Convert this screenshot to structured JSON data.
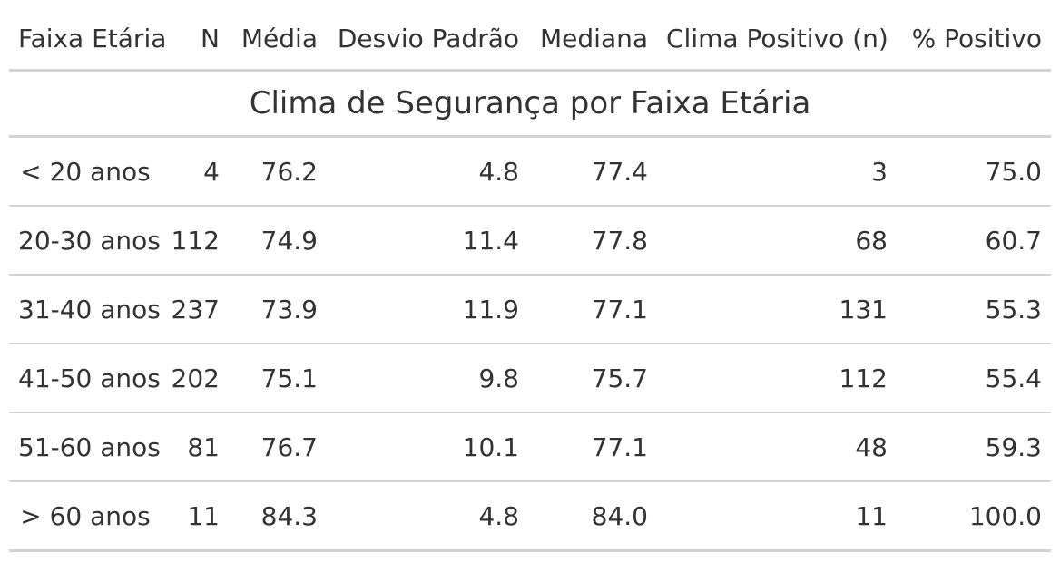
{
  "table": {
    "title": "Clima de Segurança por Faixa Etária",
    "columns": [
      "Faixa Etária",
      "N",
      "Média",
      "Desvio Padrão",
      "Mediana",
      "Clima Positivo (n)",
      "% Positivo"
    ],
    "rows": [
      [
        "< 20 anos",
        "4",
        "76.2",
        "4.8",
        "77.4",
        "3",
        "75.0"
      ],
      [
        "20-30 anos",
        "112",
        "74.9",
        "11.4",
        "77.8",
        "68",
        "60.7"
      ],
      [
        "31-40 anos",
        "237",
        "73.9",
        "11.9",
        "77.1",
        "131",
        "55.3"
      ],
      [
        "41-50 anos",
        "202",
        "75.1",
        "9.8",
        "75.7",
        "112",
        "55.4"
      ],
      [
        "51-60 anos",
        "81",
        "76.7",
        "10.1",
        "77.1",
        "48",
        "59.3"
      ],
      [
        "> 60 anos",
        "11",
        "84.3",
        "4.8",
        "84.0",
        "11",
        "100.0"
      ]
    ]
  },
  "colors": {
    "text": "#333333",
    "rule_heavy": "#a8a8a8",
    "rule_light": "#d3d3d3"
  }
}
